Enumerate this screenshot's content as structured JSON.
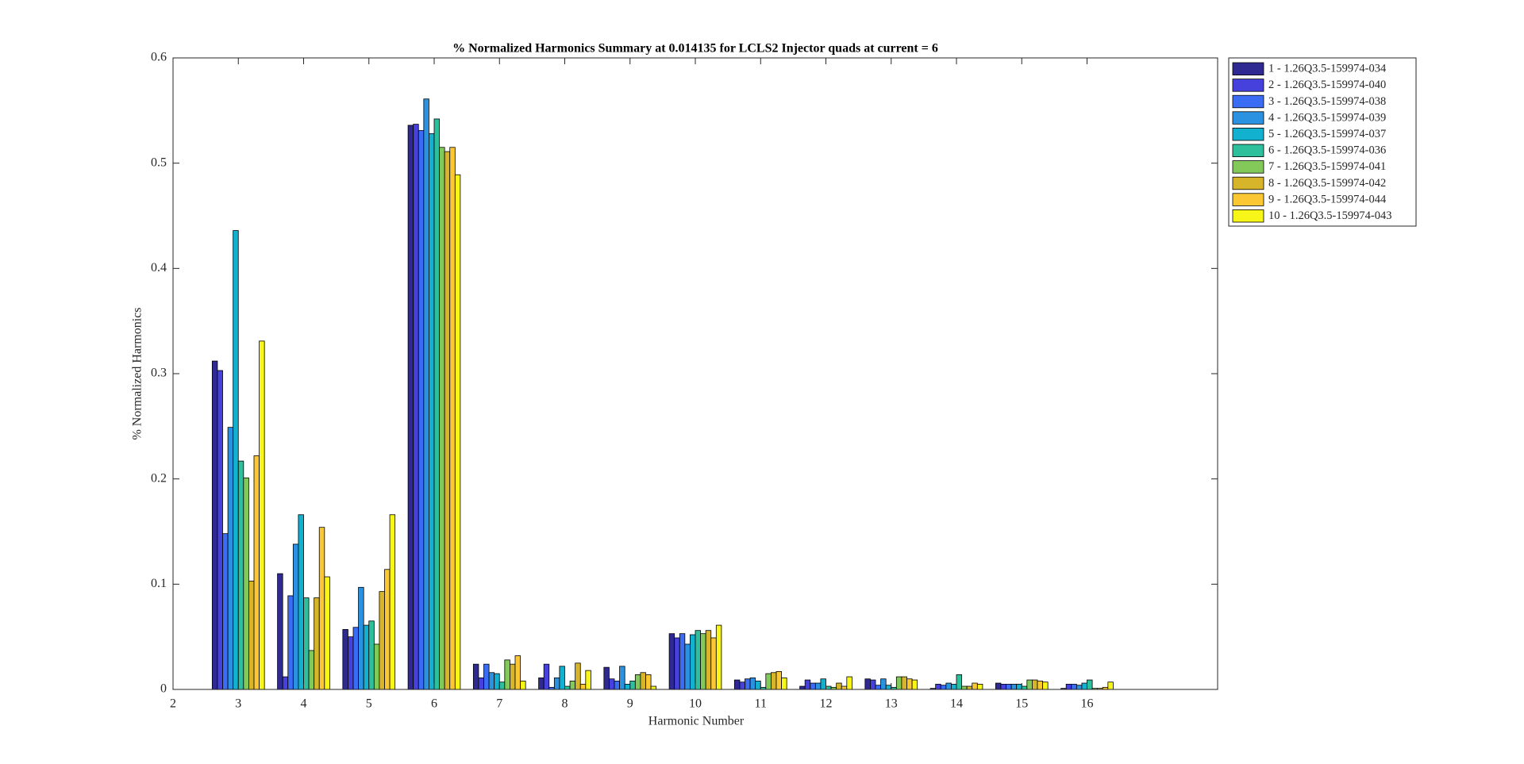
{
  "chart_data": {
    "type": "bar",
    "title": "% Normalized Harmonics Summary at 0.014135 for LCLS2 Injector quads at current = 6",
    "x_label": "Harmonic Number",
    "y_label": "% Normalized Harmonics",
    "x": [
      3,
      4,
      5,
      6,
      7,
      8,
      9,
      10,
      11,
      12,
      13,
      14,
      15,
      16
    ],
    "xlim": [
      2,
      18
    ],
    "xticks": [
      2,
      3,
      4,
      5,
      6,
      7,
      8,
      9,
      10,
      11,
      12,
      13,
      14,
      15,
      16
    ],
    "ylim": [
      0,
      0.6
    ],
    "yticks": [
      0,
      0.1,
      0.2,
      0.3,
      0.4,
      0.5,
      0.6
    ],
    "grid": false,
    "legend": "outside-right",
    "series": [
      {
        "name": "1 - 1.26Q3.5-159974-034",
        "color": "#2f2a92",
        "values": [
          0.312,
          0.11,
          0.057,
          0.536,
          0.024,
          0.011,
          0.021,
          0.053,
          0.009,
          0.003,
          0.01,
          0.001,
          0.006,
          0.001
        ]
      },
      {
        "name": "2 - 1.26Q3.5-159974-040",
        "color": "#4641dc",
        "values": [
          0.303,
          0.012,
          0.05,
          0.537,
          0.011,
          0.024,
          0.01,
          0.049,
          0.007,
          0.009,
          0.009,
          0.005,
          0.005,
          0.005
        ]
      },
      {
        "name": "3 - 1.26Q3.5-159974-038",
        "color": "#3a6cf4",
        "values": [
          0.148,
          0.089,
          0.059,
          0.531,
          0.024,
          0.002,
          0.008,
          0.053,
          0.01,
          0.006,
          0.004,
          0.004,
          0.005,
          0.005
        ]
      },
      {
        "name": "4 - 1.26Q3.5-159974-039",
        "color": "#2a92e0",
        "values": [
          0.249,
          0.138,
          0.097,
          0.561,
          0.016,
          0.011,
          0.022,
          0.043,
          0.011,
          0.006,
          0.01,
          0.006,
          0.005,
          0.004
        ]
      },
      {
        "name": "5 - 1.26Q3.5-159974-037",
        "color": "#12b1cf",
        "values": [
          0.436,
          0.166,
          0.061,
          0.528,
          0.015,
          0.022,
          0.005,
          0.052,
          0.008,
          0.01,
          0.004,
          0.005,
          0.005,
          0.006
        ]
      },
      {
        "name": "6 - 1.26Q3.5-159974-036",
        "color": "#2ebf9c",
        "values": [
          0.217,
          0.087,
          0.065,
          0.542,
          0.007,
          0.003,
          0.008,
          0.056,
          0.002,
          0.003,
          0.002,
          0.014,
          0.003,
          0.009
        ]
      },
      {
        "name": "7 - 1.26Q3.5-159974-041",
        "color": "#82c95a",
        "values": [
          0.201,
          0.037,
          0.043,
          0.515,
          0.028,
          0.008,
          0.014,
          0.053,
          0.015,
          0.002,
          0.012,
          0.003,
          0.009,
          0.001
        ]
      },
      {
        "name": "8 - 1.26Q3.5-159974-042",
        "color": "#d6b52a",
        "values": [
          0.103,
          0.087,
          0.093,
          0.511,
          0.024,
          0.025,
          0.016,
          0.056,
          0.016,
          0.006,
          0.012,
          0.003,
          0.009,
          0.001
        ]
      },
      {
        "name": "9 - 1.26Q3.5-159974-044",
        "color": "#fbc833",
        "values": [
          0.222,
          0.154,
          0.114,
          0.515,
          0.032,
          0.005,
          0.014,
          0.049,
          0.017,
          0.003,
          0.01,
          0.006,
          0.008,
          0.002
        ]
      },
      {
        "name": "10 - 1.26Q3.5-159974-043",
        "color": "#f8f518",
        "values": [
          0.331,
          0.107,
          0.166,
          0.489,
          0.008,
          0.018,
          0.003,
          0.061,
          0.011,
          0.012,
          0.009,
          0.005,
          0.007,
          0.007
        ]
      }
    ]
  }
}
